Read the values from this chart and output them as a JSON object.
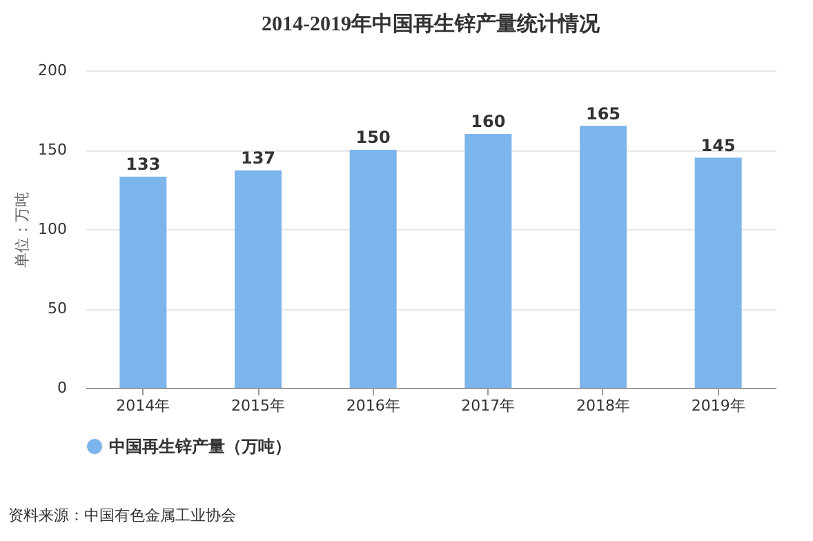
{
  "chart_data": {
    "type": "bar",
    "title": "2014-2019年中国再生锌产量统计情况",
    "ylabel": "单位：万吨",
    "categories": [
      "2014年",
      "2015年",
      "2016年",
      "2017年",
      "2018年",
      "2019年"
    ],
    "series": [
      {
        "name": "中国再生锌产量（万吨）",
        "color": "#7cb5ec",
        "values": [
          133,
          137,
          150,
          160,
          165,
          145
        ]
      }
    ],
    "ylim": [
      0,
      200
    ],
    "yticks": [
      0,
      50,
      100,
      150,
      200
    ],
    "grid": "y",
    "legend": "bottom",
    "data_labels": true,
    "annotations": [
      "资料来源：中国有色金属工业协会"
    ]
  }
}
